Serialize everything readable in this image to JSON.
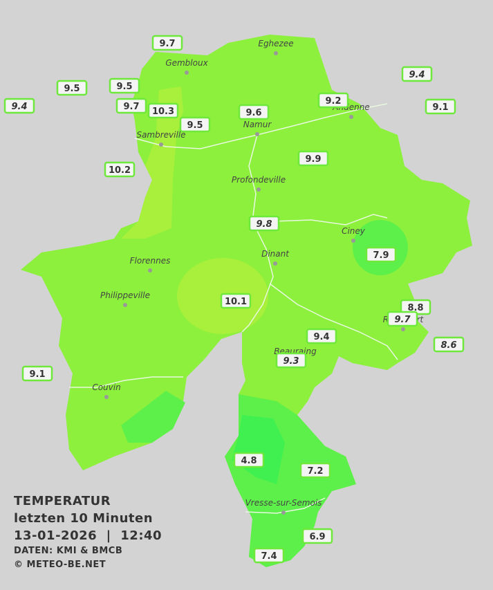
{
  "map": {
    "cities": [
      "Eghezee",
      "Gembloux",
      "Andenne",
      "Namur",
      "Sambreville",
      "Profondeville",
      "Ciney",
      "Florennes",
      "Dinant",
      "Philippeville",
      "Rochefort",
      "Beauraing",
      "Couvin",
      "Vresse-sur-Semois"
    ],
    "stations": [
      {
        "value": 9.7,
        "italic": false
      },
      {
        "value": 9.4,
        "italic": true
      },
      {
        "value": 9.5,
        "italic": false
      },
      {
        "value": 9.5,
        "italic": false
      },
      {
        "value": 9.4,
        "italic": true
      },
      {
        "value": 9.7,
        "italic": false
      },
      {
        "value": 10.3,
        "italic": false
      },
      {
        "value": 9.6,
        "italic": false
      },
      {
        "value": 9.2,
        "italic": false
      },
      {
        "value": 9.1,
        "italic": false
      },
      {
        "value": 9.5,
        "italic": false
      },
      {
        "value": 9.9,
        "italic": false
      },
      {
        "value": 10.2,
        "italic": false
      },
      {
        "value": 9.8,
        "italic": true
      },
      {
        "value": 7.9,
        "italic": false
      },
      {
        "value": 10.1,
        "italic": false
      },
      {
        "value": 8.8,
        "italic": false
      },
      {
        "value": 9.7,
        "italic": true
      },
      {
        "value": 9.4,
        "italic": false
      },
      {
        "value": 8.6,
        "italic": true
      },
      {
        "value": 9.3,
        "italic": true
      },
      {
        "value": 9.1,
        "italic": false
      },
      {
        "value": 4.8,
        "italic": false
      },
      {
        "value": 7.2,
        "italic": false
      },
      {
        "value": 6.9,
        "italic": false
      },
      {
        "value": 7.4,
        "italic": false
      }
    ]
  },
  "legend": {
    "title": "TEMPERATUR",
    "period": "letzten 10 Minuten",
    "datetime": "13-01-2026  |  12:40",
    "source": "DATEN: KMI & BMCB",
    "copyright": "© METEO-BE.NET"
  }
}
